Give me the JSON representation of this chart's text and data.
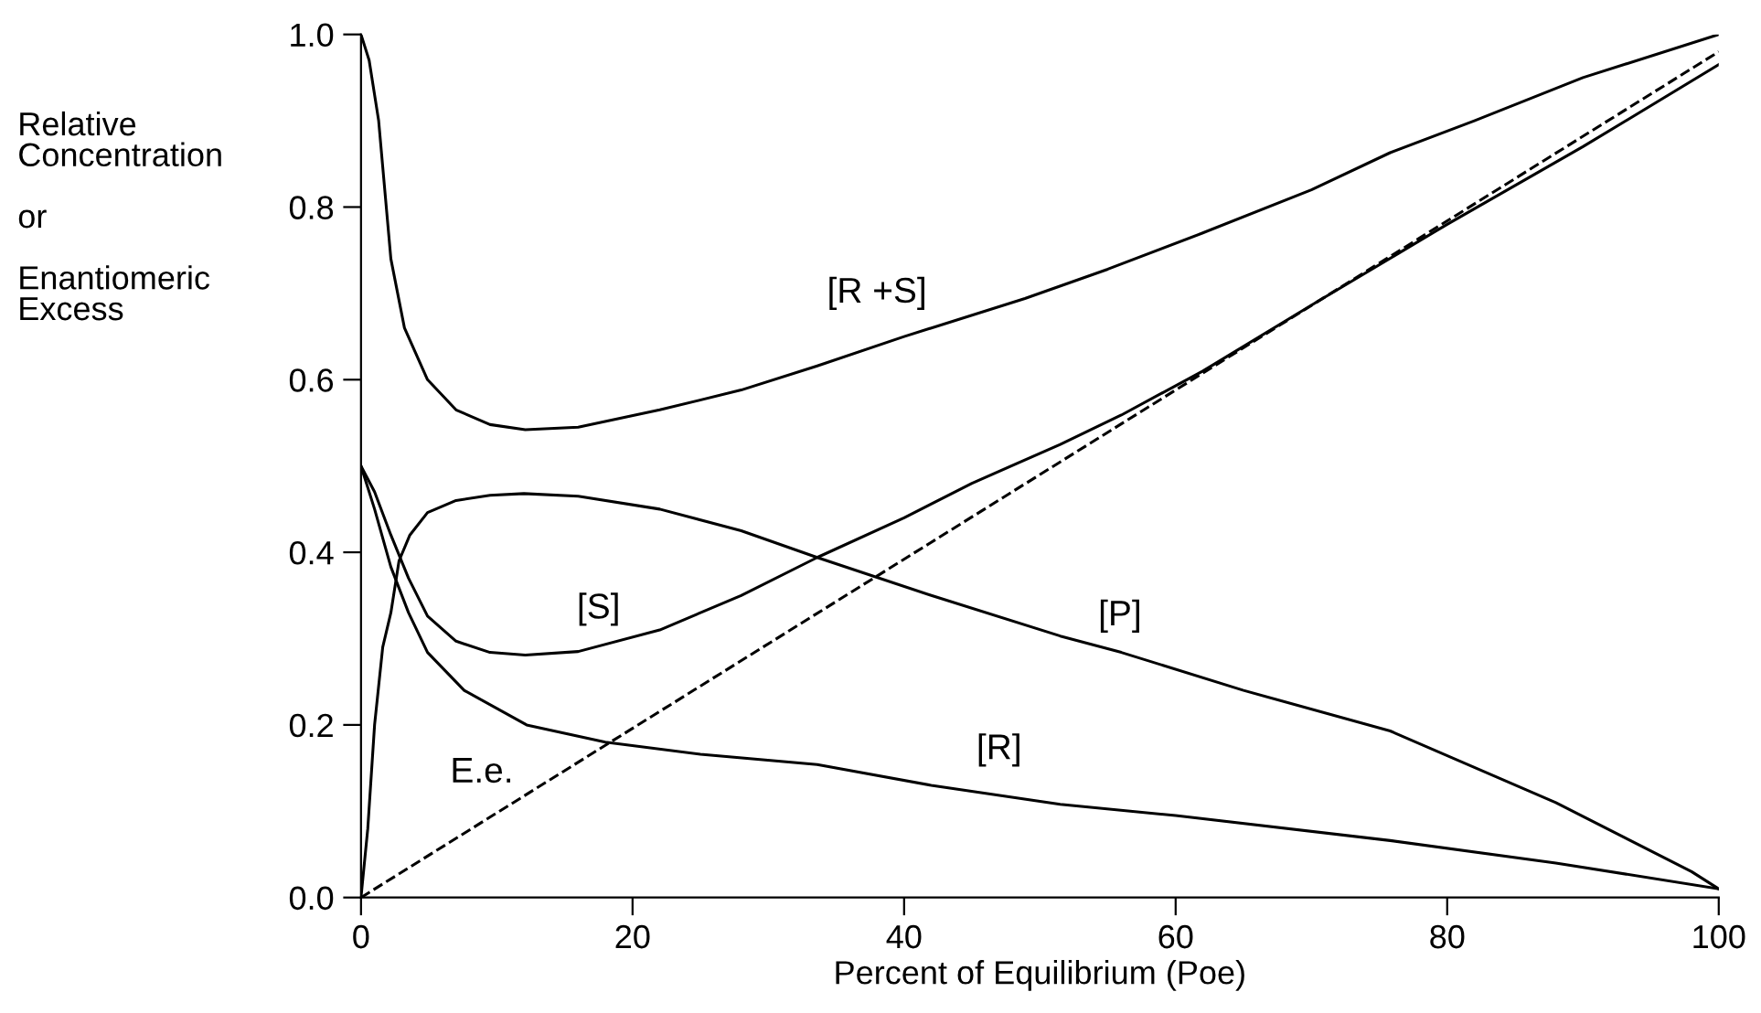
{
  "chart_data": {
    "type": "line",
    "xlabel": "Percent of Equilibrium (Poe)",
    "ylabel": "Relative\nConcentration\n\nor\n\nEnantiomeric\nExcess",
    "xlim": [
      0,
      100
    ],
    "ylim": [
      0,
      1.0
    ],
    "xticks": [
      0,
      20,
      40,
      60,
      80,
      100
    ],
    "yticks": [
      {
        "value": 0,
        "label": "0.0"
      },
      {
        "value": 0.2,
        "label": "0.2"
      },
      {
        "value": 0.4,
        "label": "0.4"
      },
      {
        "value": 0.6,
        "label": "0.6"
      },
      {
        "value": 0.8,
        "label": "0.8"
      },
      {
        "value": 1.0,
        "label": "1.0"
      }
    ],
    "grid": false,
    "legend": false,
    "marker": "none",
    "series": [
      {
        "name": "[R +S]",
        "color": "#000000",
        "line_style": "solid",
        "x": [
          0,
          0.6,
          1.3,
          2.2,
          3.2,
          4.9,
          7,
          9.5,
          12.1,
          16,
          22,
          28,
          33.6,
          40,
          48.9,
          55,
          62,
          70,
          75.8,
          82,
          90,
          100
        ],
        "values": [
          1.0,
          0.97,
          0.9,
          0.74,
          0.66,
          0.6,
          0.565,
          0.548,
          0.542,
          0.545,
          0.565,
          0.588,
          0.616,
          0.65,
          0.694,
          0.728,
          0.77,
          0.82,
          0.863,
          0.9,
          0.95,
          1.0
        ]
      },
      {
        "name": "[S]",
        "color": "#000000",
        "line_style": "solid",
        "x": [
          0,
          1,
          2.2,
          3.5,
          4.9,
          7,
          9.5,
          12.1,
          16,
          22,
          28,
          33.6,
          40,
          45,
          51.5,
          56,
          62,
          70.4,
          80,
          90,
          100
        ],
        "values": [
          0.5,
          0.47,
          0.42,
          0.37,
          0.326,
          0.297,
          0.284,
          0.281,
          0.285,
          0.31,
          0.35,
          0.394,
          0.44,
          0.48,
          0.525,
          0.559,
          0.61,
          0.69,
          0.78,
          0.87,
          0.965
        ]
      },
      {
        "name": "[R]",
        "color": "#000000",
        "line_style": "solid",
        "x": [
          0,
          1,
          2.2,
          3.5,
          4.9,
          7.6,
          12.2,
          18,
          25,
          33.6,
          42,
          51.5,
          60,
          75.8,
          88,
          100
        ],
        "values": [
          0.5,
          0.45,
          0.383,
          0.33,
          0.284,
          0.24,
          0.2,
          0.18,
          0.166,
          0.154,
          0.13,
          0.108,
          0.095,
          0.066,
          0.04,
          0.01
        ]
      },
      {
        "name": "[P]",
        "color": "#000000",
        "line_style": "solid",
        "x": [
          0,
          0.5,
          1,
          1.6,
          2.2,
          2.8,
          3.6,
          4.9,
          7,
          9.5,
          12,
          16,
          22,
          28,
          33.6,
          42,
          51.5,
          56,
          65,
          75.8,
          88,
          98,
          100
        ],
        "values": [
          0,
          0.08,
          0.2,
          0.29,
          0.33,
          0.39,
          0.42,
          0.446,
          0.46,
          0.466,
          0.468,
          0.465,
          0.45,
          0.425,
          0.394,
          0.35,
          0.303,
          0.284,
          0.24,
          0.193,
          0.11,
          0.03,
          0.01
        ]
      },
      {
        "name": "E.e.",
        "color": "#000000",
        "line_style": "dashed",
        "x": [
          0,
          100
        ],
        "values": [
          0,
          0.98
        ]
      }
    ]
  }
}
